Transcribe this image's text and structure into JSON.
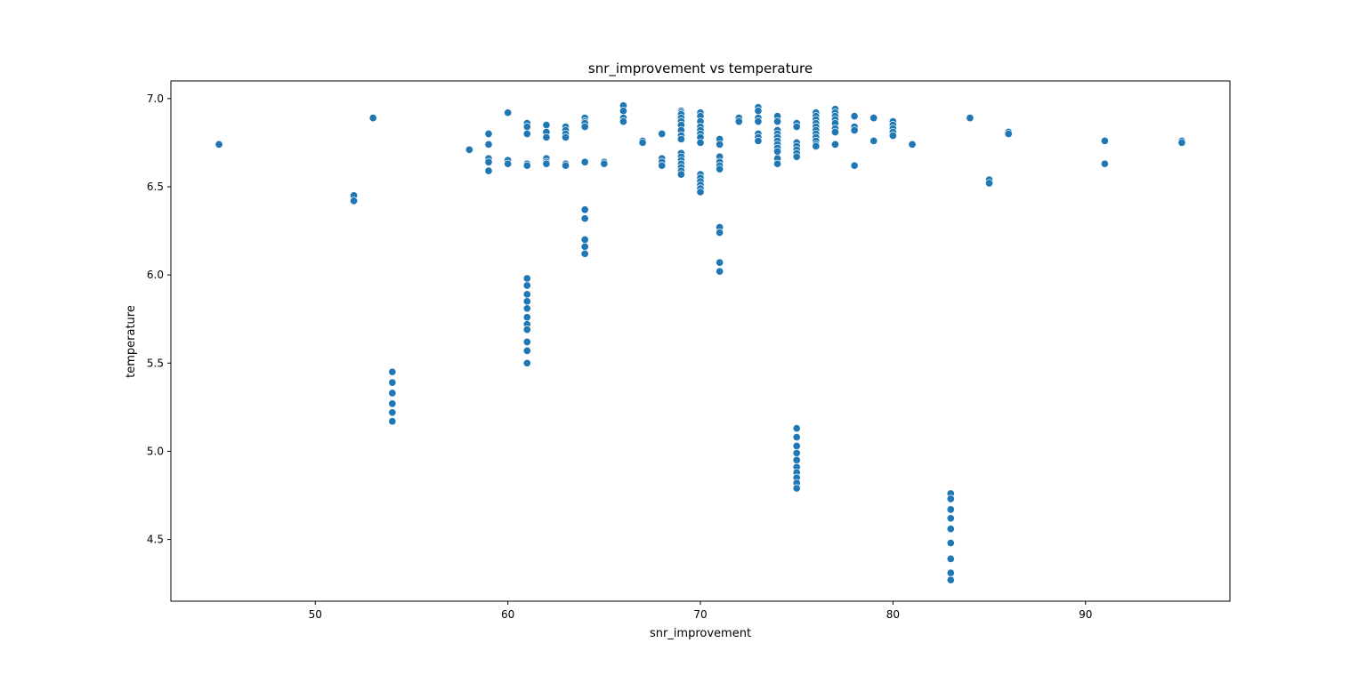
{
  "chart_data": {
    "type": "scatter",
    "title": "snr_improvement vs temperature",
    "xlabel": "snr_improvement",
    "ylabel": "temperature",
    "xlim": [
      42.5,
      97.5
    ],
    "ylim": [
      4.15,
      7.1
    ],
    "xticks": [
      "50",
      "60",
      "70",
      "80",
      "90"
    ],
    "yticks": [
      "4.5",
      "5.0",
      "5.5",
      "6.0",
      "6.5",
      "7.0"
    ],
    "grid": false,
    "marker_color": "#1f77b4",
    "points": [
      [
        45,
        6.74
      ],
      [
        52,
        6.45
      ],
      [
        52,
        6.42
      ],
      [
        53,
        6.89
      ],
      [
        54,
        5.45
      ],
      [
        54,
        5.39
      ],
      [
        54,
        5.33
      ],
      [
        54,
        5.27
      ],
      [
        54,
        5.22
      ],
      [
        54,
        5.17
      ],
      [
        58,
        6.71
      ],
      [
        59,
        6.8
      ],
      [
        59,
        6.74
      ],
      [
        59,
        6.66
      ],
      [
        59,
        6.64
      ],
      [
        59,
        6.59
      ],
      [
        60,
        6.92
      ],
      [
        60,
        6.65
      ],
      [
        60,
        6.63
      ],
      [
        61,
        6.86
      ],
      [
        61,
        6.84
      ],
      [
        61,
        6.8
      ],
      [
        61,
        6.63
      ],
      [
        61,
        6.62
      ],
      [
        61,
        5.98
      ],
      [
        61,
        5.94
      ],
      [
        61,
        5.89
      ],
      [
        61,
        5.85
      ],
      [
        61,
        5.81
      ],
      [
        61,
        5.76
      ],
      [
        61,
        5.72
      ],
      [
        61,
        5.69
      ],
      [
        61,
        5.62
      ],
      [
        61,
        5.57
      ],
      [
        61,
        5.5
      ],
      [
        62,
        6.85
      ],
      [
        62,
        6.81
      ],
      [
        62,
        6.78
      ],
      [
        62,
        6.66
      ],
      [
        62,
        6.64
      ],
      [
        62,
        6.63
      ],
      [
        63,
        6.84
      ],
      [
        63,
        6.82
      ],
      [
        63,
        6.8
      ],
      [
        63,
        6.78
      ],
      [
        63,
        6.63
      ],
      [
        63,
        6.62
      ],
      [
        64,
        6.89
      ],
      [
        64,
        6.87
      ],
      [
        64,
        6.86
      ],
      [
        64,
        6.84
      ],
      [
        64,
        6.64
      ],
      [
        64,
        6.37
      ],
      [
        64,
        6.32
      ],
      [
        64,
        6.2
      ],
      [
        64,
        6.16
      ],
      [
        64,
        6.12
      ],
      [
        65,
        6.64
      ],
      [
        65,
        6.63
      ],
      [
        66,
        6.96
      ],
      [
        66,
        6.93
      ],
      [
        66,
        6.89
      ],
      [
        66,
        6.87
      ],
      [
        67,
        6.76
      ],
      [
        67,
        6.75
      ],
      [
        68,
        6.8
      ],
      [
        68,
        6.66
      ],
      [
        68,
        6.64
      ],
      [
        68,
        6.62
      ],
      [
        69,
        6.93
      ],
      [
        69,
        6.92
      ],
      [
        69,
        6.91
      ],
      [
        69,
        6.89
      ],
      [
        69,
        6.87
      ],
      [
        69,
        6.85
      ],
      [
        69,
        6.82
      ],
      [
        69,
        6.79
      ],
      [
        69,
        6.77
      ],
      [
        69,
        6.69
      ],
      [
        69,
        6.67
      ],
      [
        69,
        6.65
      ],
      [
        69,
        6.63
      ],
      [
        69,
        6.61
      ],
      [
        69,
        6.59
      ],
      [
        69,
        6.57
      ],
      [
        70,
        6.92
      ],
      [
        70,
        6.9
      ],
      [
        70,
        6.87
      ],
      [
        70,
        6.84
      ],
      [
        70,
        6.82
      ],
      [
        70,
        6.8
      ],
      [
        70,
        6.78
      ],
      [
        70,
        6.75
      ],
      [
        70,
        6.57
      ],
      [
        70,
        6.55
      ],
      [
        70,
        6.53
      ],
      [
        70,
        6.51
      ],
      [
        70,
        6.49
      ],
      [
        70,
        6.47
      ],
      [
        71,
        6.77
      ],
      [
        71,
        6.74
      ],
      [
        71,
        6.67
      ],
      [
        71,
        6.64
      ],
      [
        71,
        6.62
      ],
      [
        71,
        6.6
      ],
      [
        71,
        6.27
      ],
      [
        71,
        6.24
      ],
      [
        71,
        6.07
      ],
      [
        71,
        6.02
      ],
      [
        72,
        6.89
      ],
      [
        72,
        6.87
      ],
      [
        73,
        6.95
      ],
      [
        73,
        6.93
      ],
      [
        73,
        6.89
      ],
      [
        73,
        6.87
      ],
      [
        73,
        6.8
      ],
      [
        73,
        6.78
      ],
      [
        73,
        6.76
      ],
      [
        74,
        6.9
      ],
      [
        74,
        6.87
      ],
      [
        74,
        6.82
      ],
      [
        74,
        6.8
      ],
      [
        74,
        6.78
      ],
      [
        74,
        6.76
      ],
      [
        74,
        6.74
      ],
      [
        74,
        6.72
      ],
      [
        74,
        6.7
      ],
      [
        74,
        6.66
      ],
      [
        74,
        6.63
      ],
      [
        75,
        6.86
      ],
      [
        75,
        6.84
      ],
      [
        75,
        6.75
      ],
      [
        75,
        6.73
      ],
      [
        75,
        6.71
      ],
      [
        75,
        6.69
      ],
      [
        75,
        6.67
      ],
      [
        75,
        5.13
      ],
      [
        75,
        5.08
      ],
      [
        75,
        5.03
      ],
      [
        75,
        4.99
      ],
      [
        75,
        4.95
      ],
      [
        75,
        4.91
      ],
      [
        75,
        4.88
      ],
      [
        75,
        4.85
      ],
      [
        75,
        4.82
      ],
      [
        75,
        4.79
      ],
      [
        76,
        6.92
      ],
      [
        76,
        6.9
      ],
      [
        76,
        6.88
      ],
      [
        76,
        6.86
      ],
      [
        76,
        6.84
      ],
      [
        76,
        6.82
      ],
      [
        76,
        6.8
      ],
      [
        76,
        6.78
      ],
      [
        76,
        6.76
      ],
      [
        76,
        6.74
      ],
      [
        76,
        6.73
      ],
      [
        77,
        6.94
      ],
      [
        77,
        6.92
      ],
      [
        77,
        6.9
      ],
      [
        77,
        6.88
      ],
      [
        77,
        6.86
      ],
      [
        77,
        6.83
      ],
      [
        77,
        6.81
      ],
      [
        77,
        6.74
      ],
      [
        78,
        6.9
      ],
      [
        78,
        6.84
      ],
      [
        78,
        6.82
      ],
      [
        78,
        6.62
      ],
      [
        79,
        6.89
      ],
      [
        79,
        6.76
      ],
      [
        80,
        6.87
      ],
      [
        80,
        6.85
      ],
      [
        80,
        6.83
      ],
      [
        80,
        6.81
      ],
      [
        80,
        6.79
      ],
      [
        81,
        6.74
      ],
      [
        83,
        4.76
      ],
      [
        83,
        4.73
      ],
      [
        83,
        4.67
      ],
      [
        83,
        4.62
      ],
      [
        83,
        4.56
      ],
      [
        83,
        4.48
      ],
      [
        83,
        4.39
      ],
      [
        83,
        4.31
      ],
      [
        83,
        4.27
      ],
      [
        84,
        6.89
      ],
      [
        85,
        6.54
      ],
      [
        85,
        6.52
      ],
      [
        86,
        6.81
      ],
      [
        86,
        6.8
      ],
      [
        91,
        6.76
      ],
      [
        91,
        6.63
      ],
      [
        95,
        6.76
      ],
      [
        95,
        6.75
      ]
    ]
  }
}
